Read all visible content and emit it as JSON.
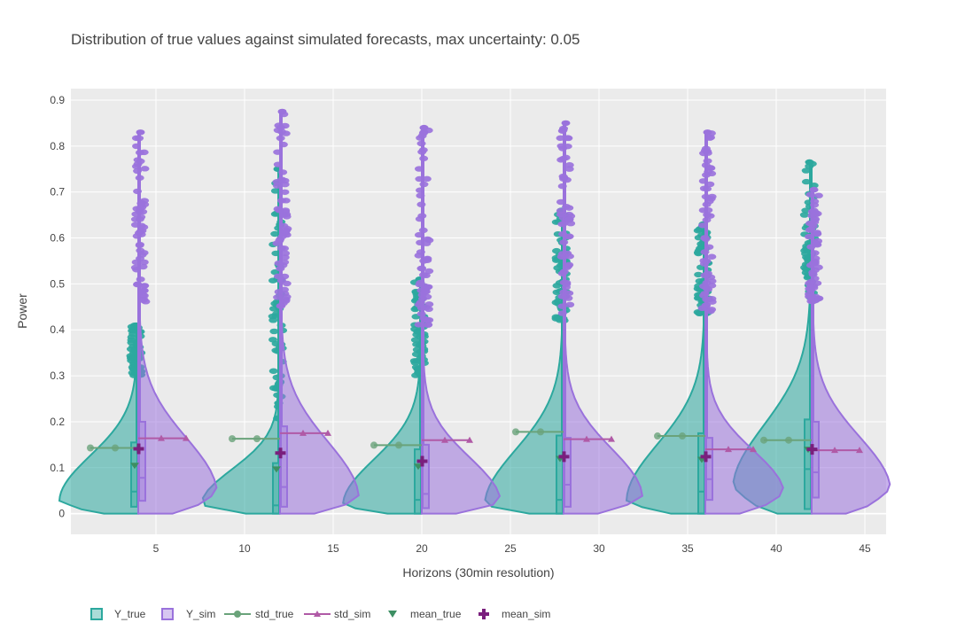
{
  "chart_data": {
    "type": "violin",
    "title": "Distribution of true values against simulated forecasts, max uncertainty: 0.05",
    "xlabel": "Horizons (30min resolution)",
    "ylabel": "Power",
    "xlim": [
      0.2,
      46.2
    ],
    "ylim": [
      -0.045,
      0.925
    ],
    "xticks": [
      5,
      10,
      15,
      20,
      25,
      30,
      35,
      40,
      45
    ],
    "yticks": [
      0,
      0.1,
      0.2,
      0.3,
      0.4,
      0.5,
      0.6,
      0.7,
      0.8,
      0.9
    ],
    "ytick_labels": [
      "0",
      "0.1",
      "0.2",
      "0.3",
      "0.4",
      "0.5",
      "0.6",
      "0.7",
      "0.8",
      "0.9"
    ],
    "horizons": [
      4,
      12,
      20,
      28,
      36,
      42
    ],
    "colors": {
      "Y_true": "#2ca89e",
      "Y_sim": "#9a72dc",
      "std_true": "#6aa37a",
      "std_sim": "#b05aa6",
      "mean_true": "#3d8f63",
      "mean_sim": "#7a1f7d",
      "plot_bg": "#ebebeb"
    },
    "legend": {
      "placement": "bottom-left",
      "items": [
        "Y_true",
        "Y_sim",
        "std_true",
        "std_sim",
        "mean_true",
        "mean_sim"
      ]
    },
    "Y_true": [
      {
        "x": 4,
        "q1": 0.015,
        "median": 0.048,
        "q3": 0.155,
        "max": 0.41,
        "whisker_top": 0.3
      },
      {
        "x": 12,
        "q1": 0.0,
        "median": 0.018,
        "q3": 0.11,
        "max": 0.75,
        "whisker_top": 0.205
      },
      {
        "x": 20,
        "q1": 0.0,
        "median": 0.03,
        "q3": 0.14,
        "max": 0.51,
        "whisker_top": 0.3
      },
      {
        "x": 28,
        "q1": 0.0,
        "median": 0.03,
        "q3": 0.17,
        "max": 0.66,
        "whisker_top": 0.42
      },
      {
        "x": 36,
        "q1": 0.0,
        "median": 0.048,
        "q3": 0.175,
        "max": 0.63,
        "whisker_top": 0.43
      },
      {
        "x": 42,
        "q1": 0.01,
        "median": 0.097,
        "q3": 0.205,
        "max": 0.765,
        "whisker_top": 0.47
      }
    ],
    "Y_sim": [
      {
        "x": 4,
        "q1": 0.028,
        "median": 0.078,
        "q3": 0.2,
        "max": 0.83
      },
      {
        "x": 12,
        "q1": 0.015,
        "median": 0.058,
        "q3": 0.19,
        "max": 0.875
      },
      {
        "x": 20,
        "q1": 0.012,
        "median": 0.043,
        "q3": 0.15,
        "max": 0.84
      },
      {
        "x": 28,
        "q1": 0.015,
        "median": 0.063,
        "q3": 0.165,
        "max": 0.85
      },
      {
        "x": 36,
        "q1": 0.03,
        "median": 0.075,
        "q3": 0.165,
        "max": 0.83
      },
      {
        "x": 42,
        "q1": 0.035,
        "median": 0.09,
        "q3": 0.2,
        "max": 0.705
      }
    ],
    "std_true": [
      {
        "x": 4,
        "value": 0.143
      },
      {
        "x": 12,
        "value": 0.163
      },
      {
        "x": 20,
        "value": 0.149
      },
      {
        "x": 28,
        "value": 0.178
      },
      {
        "x": 36,
        "value": 0.169
      },
      {
        "x": 42,
        "value": 0.16
      }
    ],
    "std_sim": [
      {
        "x": 4,
        "value": 0.164
      },
      {
        "x": 12,
        "value": 0.175
      },
      {
        "x": 20,
        "value": 0.16
      },
      {
        "x": 28,
        "value": 0.162
      },
      {
        "x": 36,
        "value": 0.14
      },
      {
        "x": 42,
        "value": 0.138
      }
    ],
    "mean_true": [
      {
        "x": 4,
        "value": 0.105
      },
      {
        "x": 12,
        "value": 0.097
      },
      {
        "x": 20,
        "value": 0.103
      },
      {
        "x": 28,
        "value": 0.12
      },
      {
        "x": 36,
        "value": 0.118
      },
      {
        "x": 42,
        "value": 0.14
      }
    ],
    "mean_sim": [
      {
        "x": 4,
        "value": 0.141
      },
      {
        "x": 12,
        "value": 0.132
      },
      {
        "x": 20,
        "value": 0.114
      },
      {
        "x": 28,
        "value": 0.124
      },
      {
        "x": 36,
        "value": 0.124
      },
      {
        "x": 42,
        "value": 0.14
      }
    ]
  }
}
